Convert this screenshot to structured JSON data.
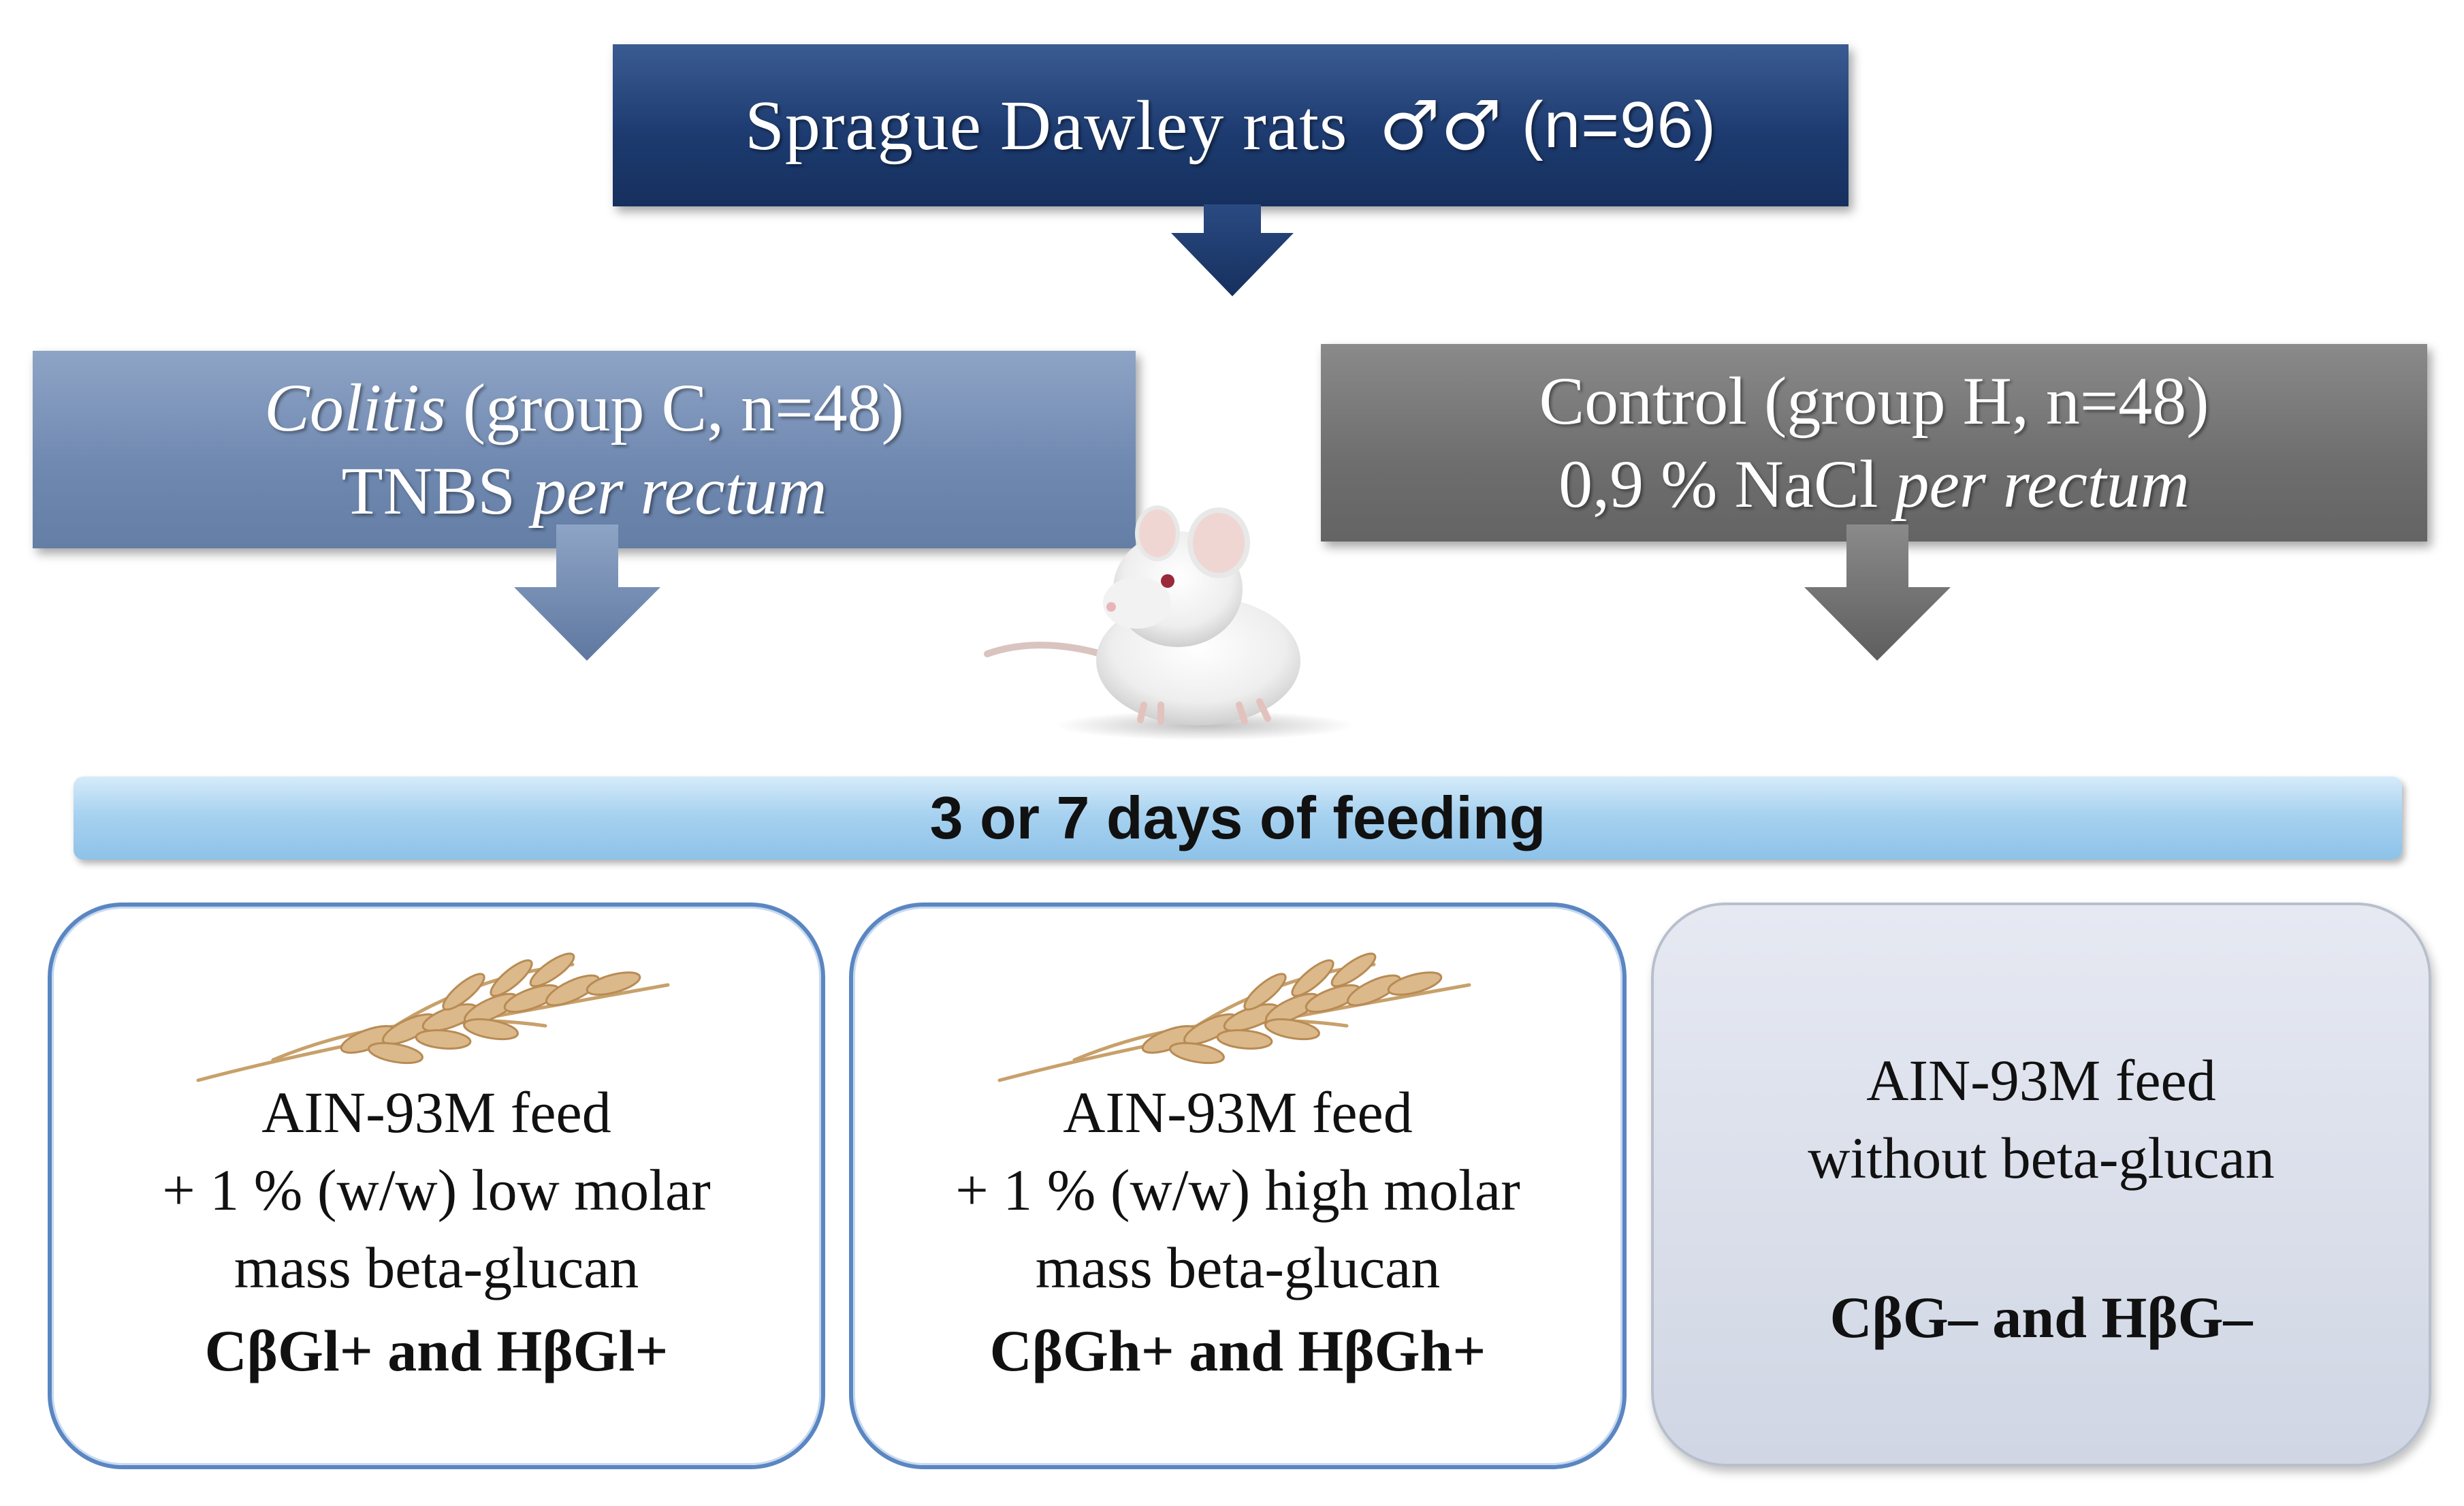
{
  "top": {
    "title": "Sprague Dawley rats",
    "symbol": "♂♂",
    "count": "(n=96)"
  },
  "groups": {
    "colitis": {
      "name": "Colitis",
      "detail": " (group C, n=48)",
      "agent": "TNBS ",
      "route": "per rectum"
    },
    "control": {
      "name": "Control (group H, n=48)",
      "agent": "0,9 % NaCl ",
      "route": "per rectum"
    }
  },
  "feeding": {
    "label": "3 or 7 days of feeding"
  },
  "diets": [
    {
      "line1": "AIN-93M feed",
      "line2": "+ 1 % (w/w) low molar",
      "line3": "mass beta-glucan",
      "groups": "CβGl+ and HβGl+"
    },
    {
      "line1": "AIN-93M feed",
      "line2": "+ 1 % (w/w) high molar",
      "line3": "mass beta-glucan",
      "groups": "CβGh+ and HβGh+"
    },
    {
      "line1": "AIN-93M feed",
      "line2": "without beta-glucan",
      "groups": "CβG– and HβG–"
    }
  ],
  "colors": {
    "top_box": "#1d3b70",
    "colitis_box": "#6f88b0",
    "control_box": "#6e6e6e",
    "feeding_bar": "#a8d2f0",
    "diet_border": "#5a86c2",
    "diet_gray": "#d0d6e4"
  },
  "icons": [
    "rat-image",
    "wheat-image"
  ]
}
